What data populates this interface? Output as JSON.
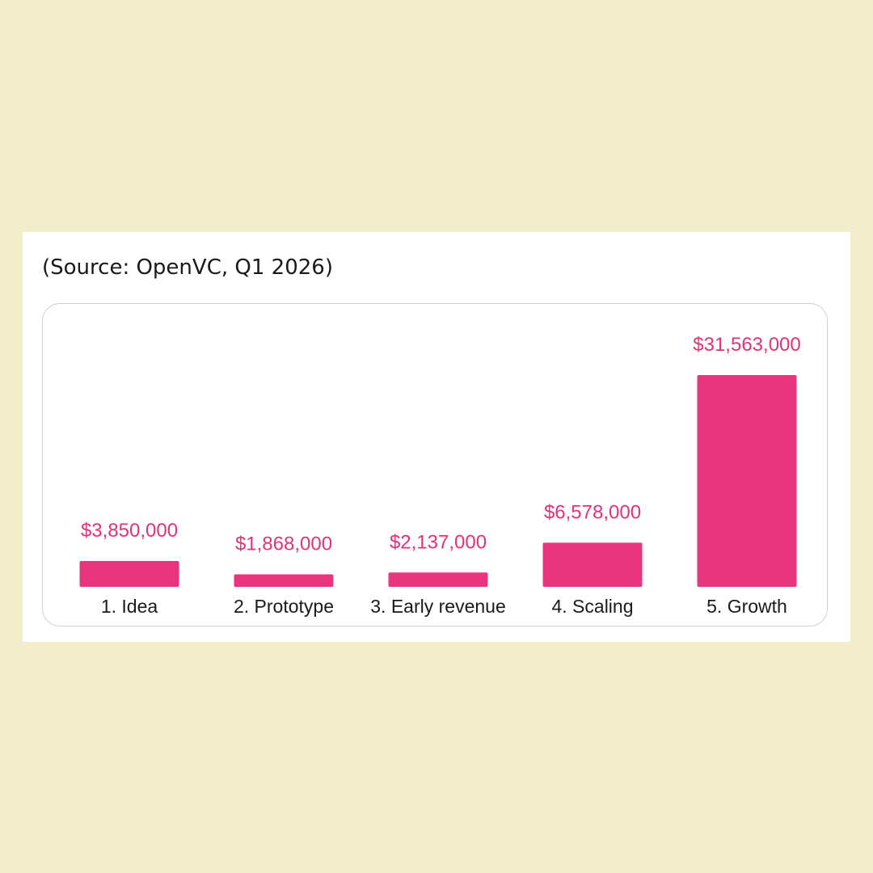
{
  "source_text": "(Source: OpenVC, Q1 2026)",
  "colors": {
    "bar": "#e8357d",
    "value_label": "#e0337a",
    "background": "#f2eecc"
  },
  "chart_data": {
    "type": "bar",
    "categories": [
      "1. Idea",
      "2. Prototype",
      "3. Early revenue",
      "4. Scaling",
      "5. Growth"
    ],
    "values": [
      3850000,
      1868000,
      2137000,
      6578000,
      31563000
    ],
    "data_labels": [
      "$3,850,000",
      "$1,868,000",
      "$2,137,000",
      "$6,578,000",
      "$31,563,000"
    ],
    "title": "",
    "xlabel": "",
    "ylabel": "",
    "ylim": [
      0,
      31563000
    ],
    "grid": false,
    "legend": "none"
  }
}
